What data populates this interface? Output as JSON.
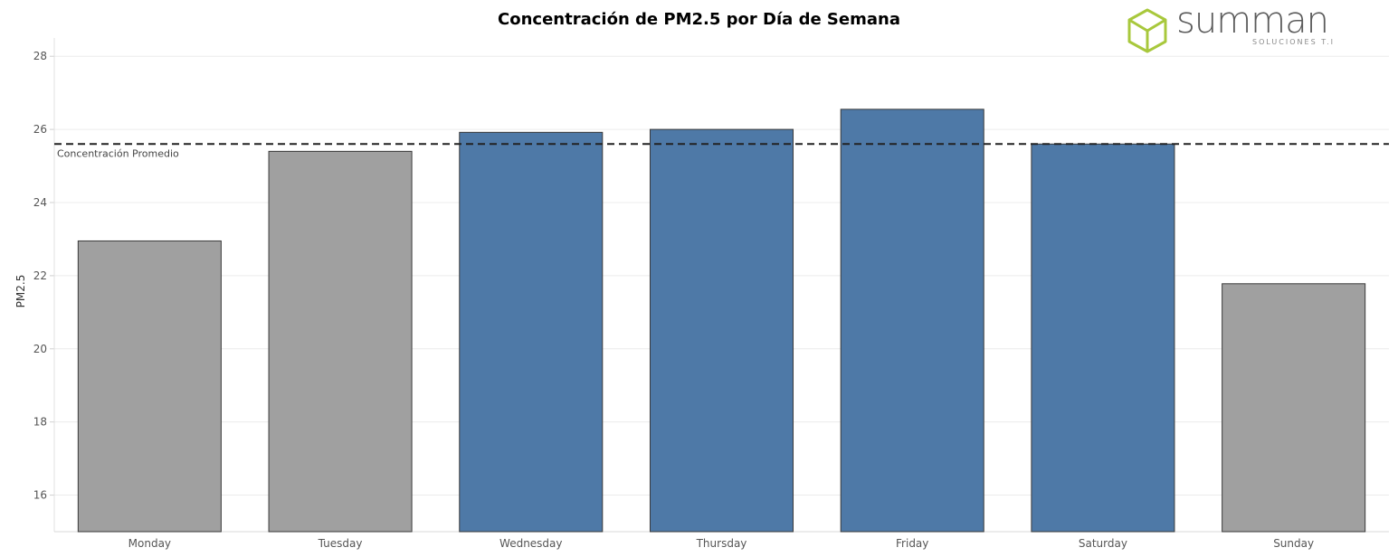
{
  "chart_data": {
    "type": "bar",
    "title": "Concentración de PM2.5 por Día de Semana",
    "xlabel": "",
    "ylabel": "PM2.5",
    "categories": [
      "Monday",
      "Tuesday",
      "Wednesday",
      "Thursday",
      "Friday",
      "Saturday",
      "Sunday"
    ],
    "values": [
      22.95,
      25.4,
      25.92,
      26.0,
      26.55,
      25.6,
      21.78
    ],
    "bar_colors": [
      "#a0a0a0",
      "#a0a0a0",
      "#4e79a7",
      "#4e79a7",
      "#4e79a7",
      "#4e79a7",
      "#a0a0a0"
    ],
    "ylim": [
      15,
      28.5
    ],
    "yticks": [
      16,
      18,
      20,
      22,
      24,
      26,
      28
    ],
    "grid": true,
    "reference_line": {
      "value": 25.6,
      "label": "Concentración Promedio",
      "style": "dashed"
    }
  },
  "logo": {
    "brand": "summan",
    "tagline": "SOLUCIONES T.I",
    "color": "#a8c83c"
  }
}
